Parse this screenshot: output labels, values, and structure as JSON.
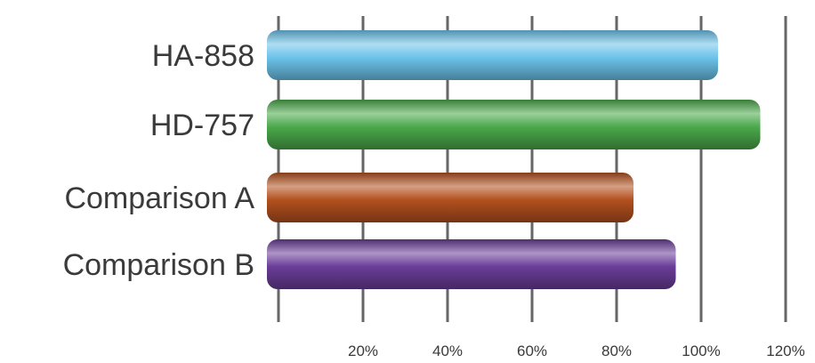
{
  "chart_data": {
    "type": "bar",
    "orientation": "horizontal",
    "categories": [
      "HA-858",
      "HD-757",
      "Comparison A",
      "Comparison B"
    ],
    "values": [
      104,
      114,
      84,
      94
    ],
    "value_unit": "%",
    "xlim": [
      0,
      120
    ],
    "xticks": [
      0,
      20,
      40,
      60,
      80,
      100,
      120
    ],
    "xtick_labels": [
      "",
      "20%",
      "40%",
      "60%",
      "80%",
      "100%",
      "120%"
    ],
    "grid": true,
    "legend": "none",
    "colors": [
      "#6cc3ea",
      "#4aa84a",
      "#b3501e",
      "#6a3d98"
    ],
    "title": "",
    "xlabel": "",
    "ylabel": ""
  }
}
